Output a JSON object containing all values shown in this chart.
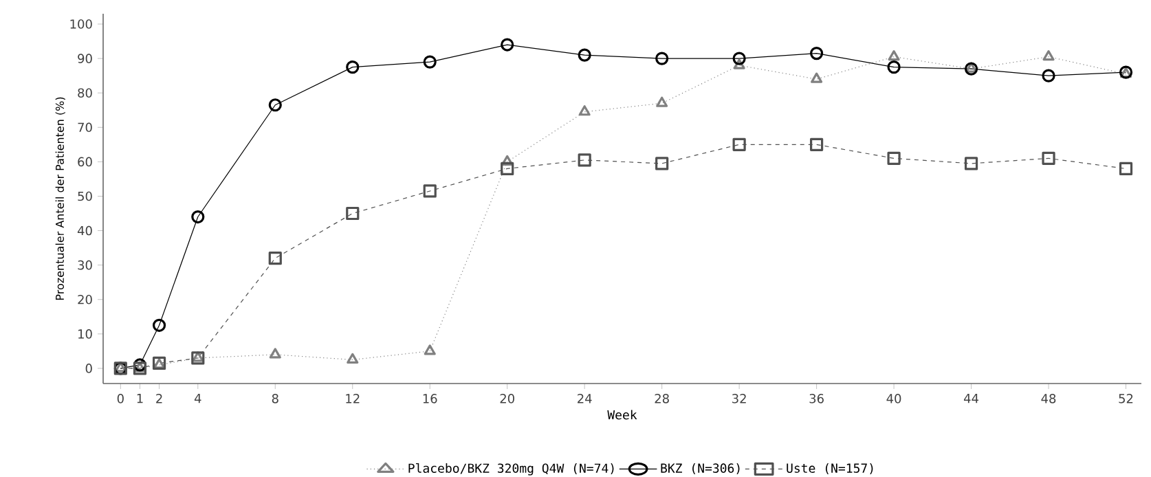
{
  "chart_data": {
    "type": "line",
    "xlabel": "Week",
    "ylabel": "Prozentualer Anteil der Patienten (%)",
    "x": [
      0,
      1,
      2,
      4,
      8,
      12,
      16,
      20,
      24,
      28,
      32,
      36,
      40,
      44,
      48,
      52
    ],
    "xlim": [
      -0.9,
      52.8
    ],
    "xticks": [
      0,
      1,
      2,
      4,
      8,
      12,
      16,
      20,
      24,
      28,
      32,
      36,
      40,
      44,
      48,
      52
    ],
    "ylim": [
      -4.4,
      103
    ],
    "yticks": [
      0,
      10,
      20,
      30,
      40,
      50,
      60,
      70,
      80,
      90,
      100
    ],
    "grid": false,
    "legend": "bottom",
    "series": [
      {
        "name": "Placebo/BKZ 320mg Q4W (N=74)",
        "color": "#808080",
        "marker": "triangle",
        "line_style": "dotted",
        "values": [
          0,
          0,
          1,
          3,
          4,
          2.5,
          5,
          60,
          74.5,
          77,
          88,
          84,
          90.5,
          87,
          90.5,
          85.5
        ]
      },
      {
        "name": "BKZ (N=306)",
        "color": "#000000",
        "marker": "circle",
        "line_style": "solid",
        "values": [
          0,
          1,
          12.5,
          44,
          76.5,
          87.5,
          89,
          94,
          91,
          90,
          90,
          91.5,
          87.5,
          87,
          85,
          86
        ]
      },
      {
        "name": "Uste (N=157)",
        "color": "#505050",
        "marker": "square",
        "line_style": "dashed",
        "values": [
          0,
          0,
          1.5,
          3,
          32,
          45,
          51.5,
          58,
          60.5,
          59.5,
          65,
          65,
          61,
          59.5,
          61,
          58
        ]
      }
    ]
  }
}
